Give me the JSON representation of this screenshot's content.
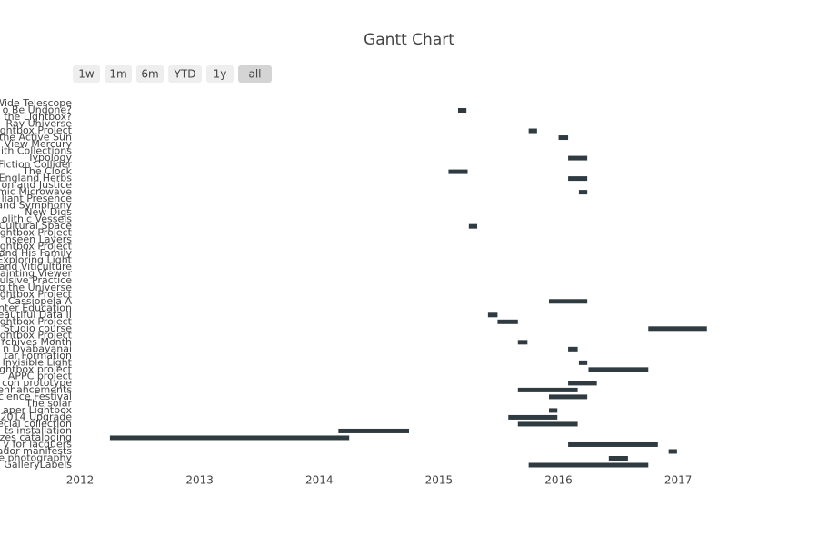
{
  "chart_data": {
    "type": "gantt",
    "title": "Gantt Chart",
    "range_buttons": [
      "1w",
      "1m",
      "6m",
      "YTD",
      "1y",
      "all"
    ],
    "active_button": 5,
    "color": "#2f3b41",
    "categories": [
      "Wide Telescope",
      "o Be Undone?",
      "the Lightbox?",
      "-Ray Universe",
      "ghtbox Project",
      "the Active Sun",
      "View Mercury",
      "ith Collections",
      "Typology",
      "Fiction Collider",
      "The Clock",
      "England Herbs",
      "on and Justice",
      "mic Microwave",
      "liant Presence",
      "and Symphony",
      "New Digs",
      "olithic Vessels",
      "Cultural Space",
      "ghtbox Project",
      "nseen Layers",
      "ghtbox Project",
      "and His Family",
      "Exploring Light",
      "and Viticulture",
      "ainting Viewer",
      "ulsive Practice",
      "g the Universe",
      "ghtbox Project",
      "Cassiopeia A",
      "nter Education",
      "eautiful Data II",
      "ghtbox Project",
      "Studio course",
      "ghtbox Project",
      "rchives Month",
      "n Dvabayanai",
      "tar Formation",
      "Invisible Light",
      "ghtbox project",
      "APPC project",
      "con prototype",
      "enhancements",
      "cience Festival",
      "The solar",
      "aper Lightbox",
      "2014 Upgrade",
      "ecial collection",
      "ts installation",
      "zes cataloging",
      "y for lacquers",
      "ador manifests",
      "e photography",
      "GalleryLabels"
    ],
    "start": [
      null,
      2015.16,
      null,
      null,
      2015.75,
      2016.0,
      null,
      null,
      2016.08,
      null,
      2015.08,
      2016.08,
      null,
      2016.17,
      null,
      null,
      null,
      null,
      2015.25,
      null,
      null,
      null,
      null,
      null,
      null,
      null,
      null,
      null,
      null,
      2015.92,
      null,
      2015.41,
      2015.49,
      2016.75,
      null,
      2015.66,
      2016.08,
      null,
      2016.17,
      2016.25,
      null,
      2016.08,
      2015.66,
      2015.92,
      null,
      2015.92,
      2015.58,
      2015.66,
      2014.16,
      2012.25,
      2016.08,
      2016.92,
      2016.42,
      2015.75
    ],
    "end": [
      null,
      2015.23,
      null,
      null,
      2015.82,
      2016.08,
      null,
      null,
      2016.24,
      null,
      2015.24,
      2016.24,
      null,
      2016.24,
      null,
      null,
      null,
      null,
      2015.32,
      null,
      null,
      null,
      null,
      null,
      null,
      null,
      null,
      null,
      null,
      2016.24,
      null,
      2015.49,
      2015.66,
      2017.24,
      null,
      2015.74,
      2016.16,
      null,
      2016.24,
      2016.75,
      null,
      2016.32,
      2016.16,
      2016.24,
      null,
      2015.99,
      2015.99,
      2016.16,
      2014.75,
      2014.25,
      2016.83,
      2016.99,
      2016.58,
      2016.75
    ],
    "xlim": [
      2012,
      2017.5
    ],
    "xticks": [
      2012,
      2013,
      2014,
      2015,
      2016,
      2017
    ]
  }
}
